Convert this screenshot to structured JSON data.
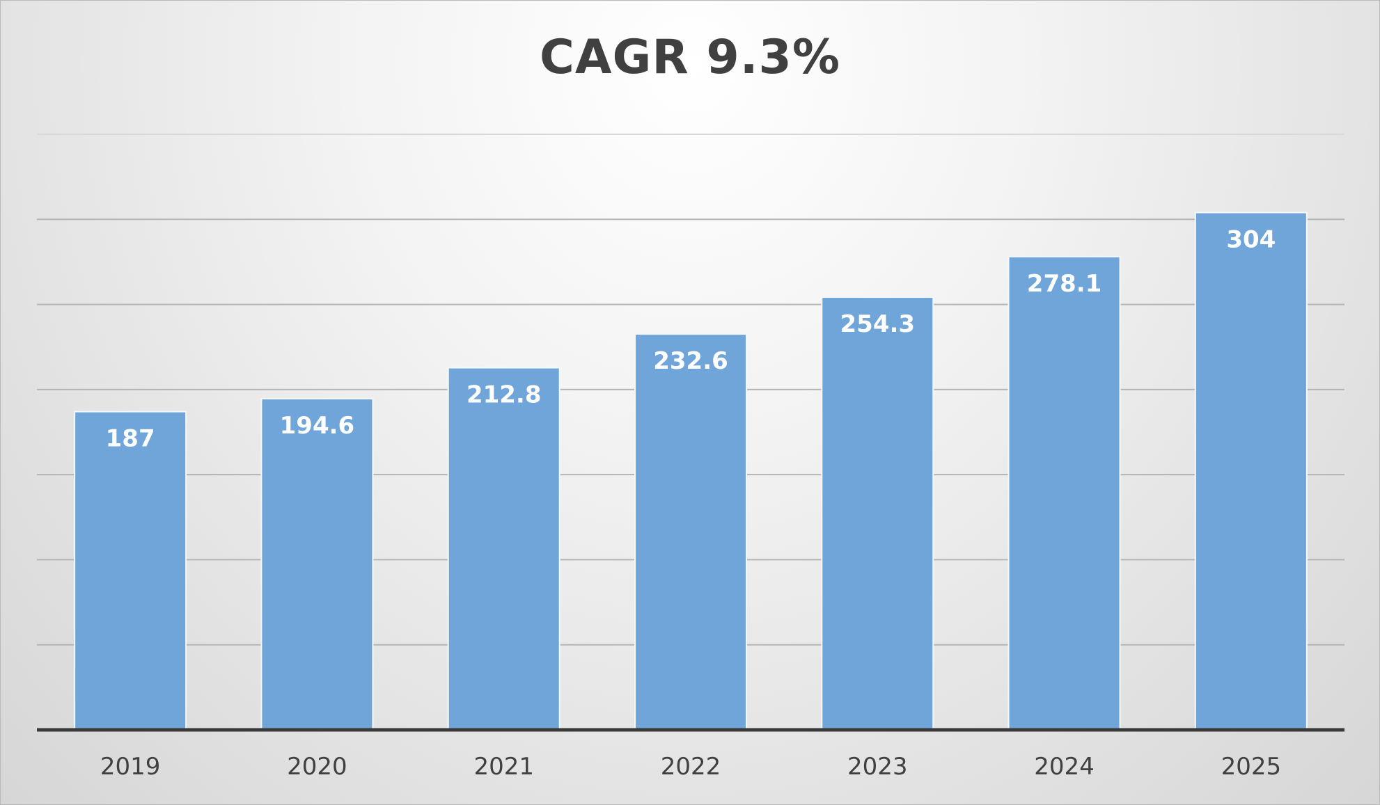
{
  "chart_data": {
    "type": "bar",
    "title": "CAGR 9.3%",
    "xlabel": "",
    "ylabel": "",
    "categories": [
      "2019",
      "2020",
      "2021",
      "2022",
      "2023",
      "2024",
      "2025"
    ],
    "values": [
      187,
      194.6,
      212.8,
      232.6,
      254.3,
      278.1,
      304
    ],
    "value_labels": [
      "187",
      "194.6",
      "212.8",
      "232.6",
      "254.3",
      "278.1",
      "304"
    ],
    "ylim": [
      0,
      350
    ],
    "y_gridline_step": 50,
    "grid": true,
    "legend": "none",
    "colors": {
      "bar": "#6fa5d8",
      "bar_edge": "#f4f8fc",
      "data_label": "#ffffff",
      "title": "#404040",
      "tick_label": "#404040",
      "baseline": "#3a3a3a"
    }
  }
}
